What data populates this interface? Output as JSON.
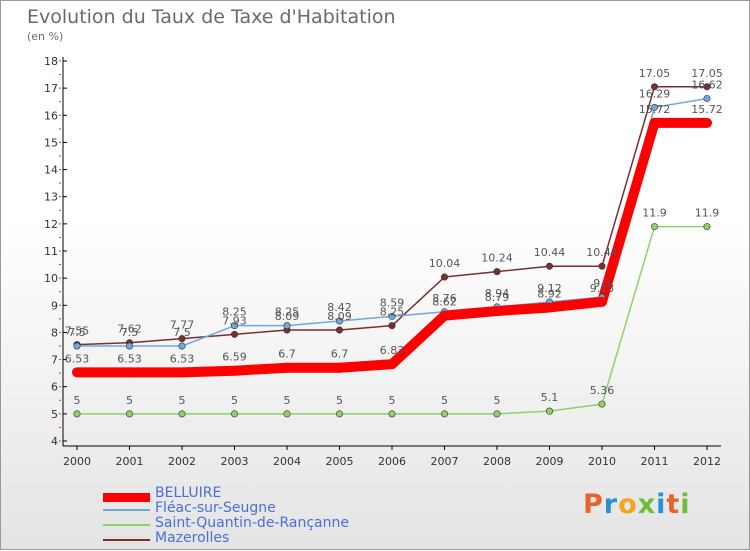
{
  "title": "Evolution du Taux de Taxe d'Habitation",
  "subtitle": "(en %)",
  "logo": "Proxiti",
  "chart_data": {
    "type": "line",
    "x": [
      "2000",
      "2001",
      "2002",
      "2003",
      "2004",
      "2005",
      "2006",
      "2007",
      "2008",
      "2009",
      "2010",
      "2011",
      "2012"
    ],
    "ylim": [
      4,
      18
    ],
    "yticks": [
      4,
      5,
      6,
      7,
      8,
      9,
      10,
      11,
      12,
      13,
      14,
      15,
      16,
      17,
      18
    ],
    "grid": false,
    "legend_position": "bottom-left",
    "series": [
      {
        "name": "BELLUIRE",
        "color": "#ff0000",
        "values": [
          6.53,
          6.53,
          6.53,
          6.59,
          6.7,
          6.7,
          6.83,
          8.62,
          8.79,
          8.92,
          9.13,
          15.72,
          15.72
        ]
      },
      {
        "name": "Fléac-sur-Seugne",
        "color": "#6fa8dc",
        "values": [
          7.5,
          7.5,
          7.5,
          8.25,
          8.25,
          8.42,
          8.59,
          8.76,
          8.94,
          9.12,
          9.3,
          16.29,
          16.62
        ]
      },
      {
        "name": "Saint-Quantin-de-Rançanne",
        "color": "#8fd16a",
        "values": [
          5,
          5,
          5,
          5,
          5,
          5,
          5,
          5,
          5,
          5.1,
          5.36,
          11.9,
          11.9
        ]
      },
      {
        "name": "Mazerolles",
        "color": "#7a2e2e",
        "values": [
          7.55,
          7.62,
          7.77,
          7.93,
          8.09,
          8.09,
          8.25,
          10.04,
          10.24,
          10.44,
          10.44,
          17.05,
          17.05
        ]
      }
    ],
    "labels": [
      [
        "6.53",
        "6.53",
        "6.53",
        "6.59",
        "6.7",
        "6.7",
        "6.83",
        "8.62",
        "8.79",
        "8.92",
        "9.13",
        "15.72",
        "15.72"
      ],
      [
        "7.5",
        "7.5",
        "7.5",
        "8.25",
        "8.25",
        "8.42",
        "8.59",
        "8.76",
        "8.94",
        "9.12",
        "9.3",
        "16.29",
        "16.62"
      ],
      [
        "5",
        "5",
        "5",
        "5",
        "5",
        "5",
        "5",
        "5",
        "5",
        "5.1",
        "5.36",
        "11.9",
        "11.9"
      ],
      [
        "7.55",
        "7.62",
        "7.77",
        "7.93",
        "8.09",
        "8.09",
        "8.25",
        "10.04",
        "10.24",
        "10.44",
        "10.44",
        "17.05",
        "17.05"
      ]
    ]
  }
}
